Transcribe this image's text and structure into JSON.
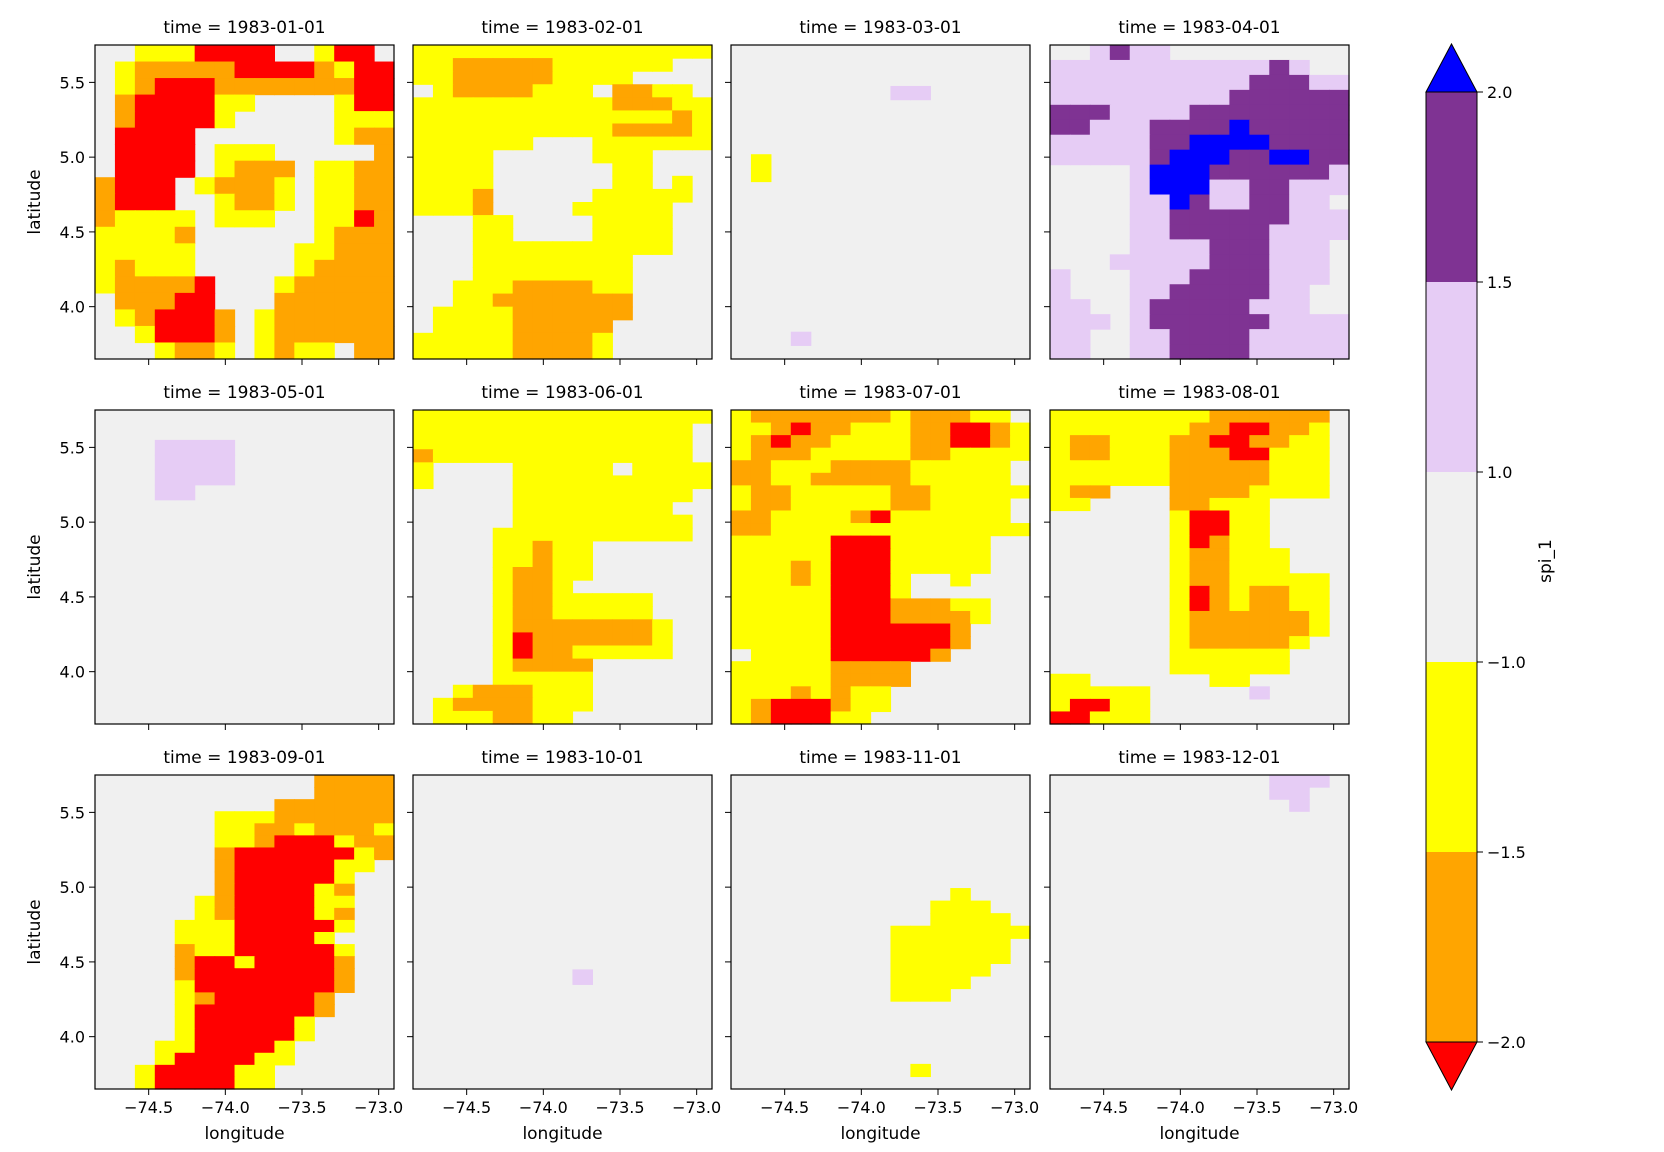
{
  "chart_data": {
    "type": "heatmap",
    "variable_label": "spi_1",
    "xlabel": "longitude",
    "ylabel": "latitude",
    "xlim": [
      -74.85,
      -72.9
    ],
    "ylim": [
      3.65,
      5.75
    ],
    "x_ticks": [
      -74.5,
      -74.0,
      -73.5,
      -73.0
    ],
    "x_tick_labels": [
      "−74.5",
      "−74.0",
      "−73.5",
      "−73.0"
    ],
    "y_ticks": [
      4.0,
      4.5,
      5.0,
      5.5
    ],
    "y_tick_labels": [
      "4.0",
      "4.5",
      "5.0",
      "5.5"
    ],
    "grid": false,
    "layout": {
      "rows": 3,
      "cols": 4
    },
    "colorbar": {
      "label": "spi_1",
      "boundaries": [
        -2.0,
        -1.5,
        -1.0,
        1.0,
        1.5,
        2.0
      ],
      "tick_labels": [
        "−2.0",
        "−1.5",
        "−1.0",
        "1.0",
        "1.5",
        "2.0"
      ],
      "extend": "both",
      "under_color": "#ff0000",
      "over_color": "#0000ff",
      "bin_colors": [
        "#ffa500",
        "#ffff00",
        "#f0f0f0",
        "#e6ccf5",
        "#7f3393"
      ]
    },
    "class_legend": {
      "R": "below -2.0",
      "O": "-2.0 to -1.5",
      "Y": "-1.5 to -1.0",
      "N": "-1.0 to 1.0",
      "L": "1.0 to 1.5",
      "P": "1.5 to 2.0",
      "B": "above 2.0"
    },
    "class_colors": {
      "R": "#ff0000",
      "O": "#ffa500",
      "Y": "#ffff00",
      "N": "#f0f0f0",
      "L": "#e6ccf5",
      "P": "#7f3393",
      "B": "#0000ff"
    },
    "panels": [
      {
        "title": "time = 1983-01-01",
        "rows": [
          "..YYYRRRR..YRR.",
          ".YOOOOORRRROYRR",
          ".YORRROOOOOOORR",
          ".ORRRRYY....YRR",
          ".ORRRRY.....YYY",
          ".RRRR.......YOO",
          ".RRRR.YYY.....O",
          ".RRRR.YOOO.YYOO",
          "ORRR.YOOOY.YYOO",
          "ORRR..YOOY.YYOO",
          "OYYYY.YYY..YYRO",
          "YYYYO......YOOO",
          "YYYYY.....YYOOO",
          "YOYYY.....YOOOO",
          "YOOOOR...YOOOOO",
          ".OOORR...OOOOOO",
          ".YORRRO.YOOOOOO",
          "..YRRRO.YOOOOOO",
          "...YOOY.YOYY.OO"
        ]
      },
      {
        "title": "time = 1983-02-01",
        "rows": [
          "YYYYYYYYYYYYYYY",
          "YYOOOOOYYYYYY..",
          "YYOOOOOYYYY....",
          ".YOOOOYYY.OOYY.",
          "YYYYYYYYYYOOOYY",
          "YYYYYYYYYYYYYOY",
          "YYYYYYYYYYOOOOY",
          "YYYYYY...YYYYYY",
          "YYYY.....YYY...",
          "YYYY......YY...",
          "YYYY......YY.Y.",
          "YYYO.....YYYYY.",
          "YYYO....YYYYY..",
          "...YY....YYYY..",
          "...YY....YYYY..",
          "...YYYYYYYYYY..",
          "...YYYYYYYY....",
          "...YYYYYYYY....",
          "..YYYOOOOYY....",
          "..YYOOOOOOO....",
          ".YYYYOOOOOO....",
          ".YYYYOOOOO.....",
          "YYYYYOOOOY.....",
          "YYYYYOOOOY....."
        ]
      },
      {
        "title": "time = 1983-03-01",
        "rows": [
          "...............",
          "...............",
          "...............",
          "........LL.....",
          "...............",
          "...............",
          "...............",
          "...............",
          ".Y.............",
          ".Y.............",
          "...............",
          "...............",
          "...............",
          "...............",
          "...............",
          "...............",
          "...............",
          "...............",
          "...............",
          "...............",
          "...............",
          "...L...........",
          "..............."
        ]
      },
      {
        "title": "time = 1983-04-01",
        "rows": [
          "..LPLL.........",
          "LLLLLLLLLLLPL..",
          "LLLLLLLLLLPPPLL",
          "LLLLLLLLLPPPPPP",
          "PPPLLLLPPPPPPPP",
          "PPLLLPPPPBPPPPP",
          "LLLLLPPBBBBPPPP",
          "LLLLLPBBBPPBBPP",
          "....LBBBPPPPPPL",
          "....LBBBLLPPLLL",
          "....LLBPLLPPLL.",
          "....LLPPPPPPLLL",
          "....LLPPPPPLLLL",
          "....LLLLPPPLLL.",
          "...LLLLLPPPLLL.",
          "L...LLLPPPPLLL.",
          "L...LLPPPPPLL..",
          "LL..LPPPPPLLL..",
          "LLL.LPPPPPPLLLL",
          "LL..LLPPPPLLLLL",
          "LL..LLPPPPLLLLL"
        ]
      },
      {
        "title": "time = 1983-05-01",
        "rows": [
          "...............",
          "...............",
          "...LLLL........",
          "...LLLL........",
          "...LLLL........",
          "...LL..........",
          "...............",
          "...............",
          "...............",
          "...............",
          "...............",
          "...............",
          "...............",
          "...............",
          "...............",
          "...............",
          "...............",
          "...............",
          "...............",
          "...............",
          "..............."
        ]
      },
      {
        "title": "time = 1983-06-01",
        "rows": [
          "YYYYYYYYYYYYYYY",
          "YYYYYYYYYYYYYY.",
          "YYYYYYYYYYYYYY.",
          "OYYYYYYYYYYYYY.",
          "Y....YYYYY.YYYY",
          "Y....YYYYYYYYYY",
          ".....YYYYYYYYY.",
          ".....YYYYYYYY..",
          ".....YYYYYYYYY.",
          "....YYYYYYYYYY.",
          "....YYOYY......",
          "....YYOYY......",
          "....YOOYY......",
          "....YOOY.......",
          "....YOOYYYYY...",
          "....YOOYYYYY...",
          "....YOOOOOOOY..",
          "....YROOOOOOY..",
          "....YROOYYYYY..",
          "....YOOOO......",
          "....YYYYY......",
          "..YOOOYYY......",
          ".YOOOOYYY......",
          ".YYYOOYY......."
        ]
      },
      {
        "title": "time = 1983-07-01",
        "rows": [
          "YOOOOOOOYOOOYY.",
          "YYOROOYYYOORROY",
          "YOROOYYYYOORROY",
          "YOOOYYYYYOOYYYY",
          "OOYYYOOOOYYYYY.",
          "OOYYOOOOOYYYYY.",
          "YOOYYYYYOOYYYYY",
          "YOOYYYYYOOYYYY.",
          "OOYYYYORYYYYYY.",
          "OOYYYYYYYYYYYYY",
          "YYYYYRRRYYYYY..",
          "YYYYYRRRYYYYY..",
          "YYYOYRRRYYYYY..",
          "YYYOYRRRY..Y...",
          "YYYYYRRRY......",
          "YYYYYRRROOOYY..",
          "YYYYYRRROOOOY..",
          "YYYYYRRRRRRO...",
          "YYYYYRRRRRRO...",
          ".YYYYRRRRRO....",
          "YYYYYOOOO......",
          "YYYYYOOOO......",
          "YYYOYOYY.......",
          "YORRROYY.......",
          "YORRRYY........"
        ]
      },
      {
        "title": "time = 1983-08-01",
        "rows": [
          "YYYYYYYYOOOOOO.",
          "YYYYYYYOORROOY.",
          "YOOYYYOORROOYY.",
          "YOOYYYOOORRYYY.",
          "YYYYYYOOOOOYYY.",
          "YYYYYYOOOOOYYY.",
          "YOO...OOOOYYYY.",
          "YY....OOYYY....",
          "......YRRYY....",
          "......YRRYY....",
          "......YROYY....",
          "......YOOYYY...",
          "......YOOYYY...",
          "......YOOYYYYY.",
          "......YROYOOYY.",
          "......YROYOOYY.",
          "......YOOOOOOY.",
          "......YOOOOOOY.",
          "......YOOOOOY..",
          "......YYYYYY...",
          "......YYYYYY...",
          "YY......YY.....",
          "YYYYY.....L....",
          "YRRYY..........",
          "RRYYY.........."
        ]
      },
      {
        "title": "time = 1983-09-01",
        "rows": [
          "...........OOOO",
          "...........OOOO",
          ".........OOOOOO",
          "......YYYOOOOOO",
          "......YYOOYOOOY",
          "......YYORRRYOO",
          "......ORRRRRRYO",
          "......ORRRRRYY.",
          "......ORRRRRY..",
          "......ORRRRYO..",
          ".....YORRRRYY..",
          ".....YORRRRYO..",
          "....YYYRRRRRY..",
          "....YYYRRRRY...",
          "....OYYRRRRRY..",
          "....ORRYRRRRO..",
          "....ORRRRRRRO..",
          "....YRRRRRRRO..",
          "....YORRRRRO...",
          "....YRRRRRRO...",
          "....YRRRRRY....",
          "....YRRRRRY....",
          "...YYRRRRY.....",
          "...YRRRRYY.....",
          "..YRRRRYY......",
          "..YRRRRYY......"
        ]
      },
      {
        "title": "time = 1983-10-01",
        "rows": [
          "...............",
          "...............",
          "...............",
          "...............",
          "...............",
          "...............",
          "...............",
          "...............",
          "...............",
          "...............",
          "...............",
          "...............",
          "...............",
          "........L......",
          "...............",
          "...............",
          "...............",
          "...............",
          "...............",
          "...............",
          "..............."
        ]
      },
      {
        "title": "time = 1983-11-01",
        "rows": [
          "...............",
          "...............",
          "...............",
          "...............",
          "...............",
          "...............",
          "...............",
          "...............",
          "...............",
          "...........Y...",
          "..........YYY..",
          "..........YYYY.",
          "........YYYYYYY",
          "........YYYYYY.",
          "........YYYYYY.",
          "........YYYYY..",
          "........YYYY...",
          "........YYY....",
          "...............",
          "...............",
          "...............",
          "...............",
          "...............",
          ".........Y.....",
          "..............."
        ]
      },
      {
        "title": "time = 1983-12-01",
        "rows": [
          "...........LLL.",
          "...........LL..",
          "............L..",
          "...............",
          "...............",
          "...............",
          "...............",
          "...............",
          "...............",
          "...............",
          "...............",
          "...............",
          "...............",
          "...............",
          "...............",
          "...............",
          "...............",
          "...............",
          "...............",
          "...............",
          "...............",
          "...............",
          "...............",
          "...............",
          "...............",
          "..............."
        ]
      }
    ]
  }
}
